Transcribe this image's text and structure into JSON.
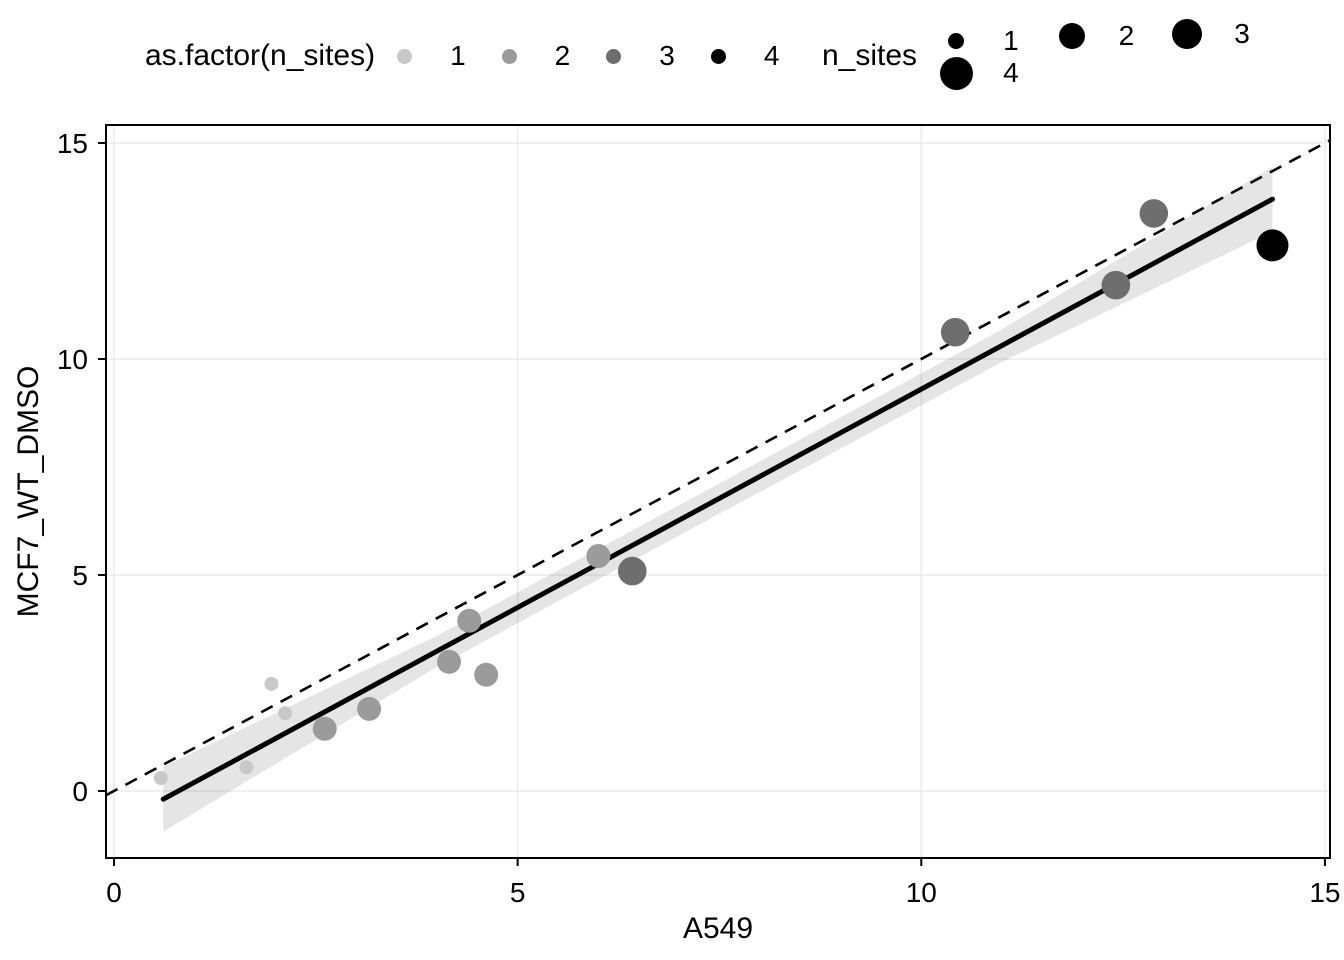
{
  "legends": {
    "color": {
      "title": "as.factor(n_sites)",
      "items": [
        {
          "label": "1",
          "color": "#c8c8c8"
        },
        {
          "label": "2",
          "color": "#9b9b9b"
        },
        {
          "label": "3",
          "color": "#6e6e6e"
        },
        {
          "label": "4",
          "color": "#000000"
        }
      ]
    },
    "size": {
      "title": "n_sites",
      "items": [
        {
          "label": "1",
          "color": "#000000",
          "diameter": 16
        },
        {
          "label": "2",
          "color": "#000000",
          "diameter": 26
        },
        {
          "label": "3",
          "color": "#000000",
          "diameter": 30
        },
        {
          "label": "4",
          "color": "#000000",
          "diameter": 33
        }
      ]
    }
  },
  "chart_data": {
    "type": "scatter",
    "xlabel": "A549",
    "ylabel": "MCF7_WT_DMSO",
    "xlim": [
      0,
      15
    ],
    "ylim": [
      0,
      15
    ],
    "xticks": [
      "0",
      "5",
      "10",
      "15"
    ],
    "xtick_values": [
      0,
      5,
      10,
      15
    ],
    "yticks": [
      "0",
      "5",
      "10",
      "15"
    ],
    "ytick_values": [
      0,
      5,
      10,
      15
    ],
    "grid": "major",
    "grid_color": "#e8e8e8",
    "panel_border_color": "#000000",
    "points": [
      {
        "x": 0.58,
        "y": 0.3,
        "n_sites": 1
      },
      {
        "x": 1.64,
        "y": 0.55,
        "n_sites": 1
      },
      {
        "x": 1.95,
        "y": 2.48,
        "n_sites": 1
      },
      {
        "x": 2.12,
        "y": 1.8,
        "n_sites": 1
      },
      {
        "x": 2.61,
        "y": 1.44,
        "n_sites": 2
      },
      {
        "x": 3.16,
        "y": 1.9,
        "n_sites": 2
      },
      {
        "x": 4.15,
        "y": 2.99,
        "n_sites": 2
      },
      {
        "x": 4.4,
        "y": 3.94,
        "n_sites": 2
      },
      {
        "x": 4.61,
        "y": 2.69,
        "n_sites": 2
      },
      {
        "x": 6.0,
        "y": 5.44,
        "n_sites": 2
      },
      {
        "x": 6.42,
        "y": 5.09,
        "n_sites": 3
      },
      {
        "x": 10.42,
        "y": 10.62,
        "n_sites": 3
      },
      {
        "x": 12.41,
        "y": 11.71,
        "n_sites": 3
      },
      {
        "x": 12.88,
        "y": 13.37,
        "n_sites": 3
      },
      {
        "x": 14.35,
        "y": 12.63,
        "n_sites": 4
      }
    ],
    "point_colors_by_n_sites": {
      "1": "#c8c8c8",
      "2": "#9b9b9b",
      "3": "#6e6e6e",
      "4": "#000000"
    },
    "point_radii_by_n_sites": {
      "1": 7,
      "2": 12,
      "3": 14.3,
      "4": 16
    },
    "identity_line": {
      "style": "dashed",
      "slope": 1,
      "intercept": 0
    },
    "smooth_line": {
      "style": "solid",
      "color": "#000000",
      "from": [
        0.61,
        -0.19
      ],
      "to": [
        14.35,
        13.7
      ],
      "ribbon_color_alpha": 0.1,
      "ribbon_upper": [
        [
          0.61,
          0.56
        ],
        [
          4.0,
          3.59
        ],
        [
          7.5,
          7.12
        ],
        [
          11.0,
          10.69
        ],
        [
          14.35,
          14.45
        ]
      ],
      "ribbon_lower": [
        [
          0.61,
          -0.94
        ],
        [
          4.0,
          2.87
        ],
        [
          7.5,
          6.42
        ],
        [
          11.0,
          9.93
        ],
        [
          14.35,
          12.95
        ]
      ]
    }
  }
}
